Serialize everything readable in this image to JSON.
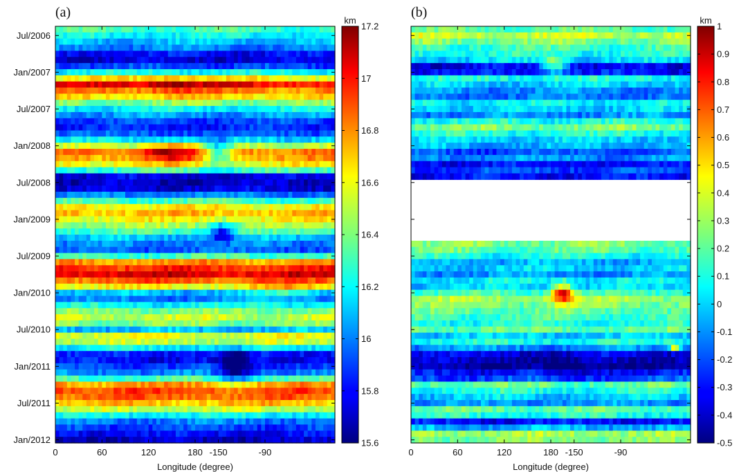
{
  "chart_data": [
    {
      "panel_label": "(a)",
      "type": "heatmap",
      "xlabel": "Longitude (degree)",
      "x_tick_labels": [
        "0",
        "60",
        "120",
        "180",
        "-150",
        "-90"
      ],
      "x_ticks_deg": [
        0,
        60,
        120,
        180,
        210,
        270
      ],
      "x_range_deg": [
        0,
        360
      ],
      "y_tick_labels": [
        "Jul/2006",
        "Jan/2007",
        "Jul/2007",
        "Jan/2008",
        "Jul/2008",
        "Jan/2009",
        "Jul/2009",
        "Jan/2010",
        "Jul/2010",
        "Jan/2011",
        "Jul/2011",
        "Jan/2012"
      ],
      "y_range": [
        "Jun/2006",
        "Jan/2012"
      ],
      "colorbar": {
        "unit": "km",
        "min": 15.6,
        "max": 17.2,
        "tick_labels": [
          "15.6",
          "15.8",
          "16",
          "16.2",
          "16.4",
          "16.6",
          "16.8",
          "17",
          "17.2"
        ],
        "tick_values": [
          15.6,
          15.8,
          16.0,
          16.2,
          16.4,
          16.6,
          16.8,
          17.0,
          17.2
        ]
      },
      "colormap": "jet",
      "grid": false,
      "rows_latest_first": false,
      "monthly_mean_km": [
        16.3,
        16.2,
        16.1,
        16.0,
        15.8,
        15.75,
        15.9,
        16.2,
        16.6,
        17.0,
        16.8,
        16.65,
        16.4,
        16.2,
        16.05,
        15.9,
        15.85,
        15.95,
        16.15,
        16.5,
        16.8,
        16.75,
        16.6,
        16.3,
        15.75,
        15.7,
        15.75,
        16.0,
        16.3,
        16.6,
        16.7,
        16.6,
        16.45,
        16.3,
        16.1,
        16.0,
        15.95,
        16.3,
        16.75,
        16.95,
        17.05,
        16.85,
        16.6,
        16.1,
        16.0,
        16.2,
        16.4,
        16.5,
        16.4,
        16.1,
        16.55,
        16.5,
        16.2,
        15.85,
        15.8,
        15.9,
        16.0,
        16.3,
        16.75,
        16.9,
        16.85,
        16.7,
        16.5,
        16.2,
        16.0,
        15.9,
        15.8,
        15.7
      ],
      "features": [
        {
          "center_lon_deg": 145,
          "month_index": 20,
          "delta_km": 0.35,
          "lon_width_deg": 35,
          "month_width": 1.6
        },
        {
          "center_lon_deg": 210,
          "month_index": 20,
          "delta_km": -0.55,
          "lon_width_deg": 18,
          "month_width": 2.0
        },
        {
          "center_lon_deg": 215,
          "month_index": 33,
          "delta_km": -0.45,
          "lon_width_deg": 15,
          "month_width": 1.6
        },
        {
          "center_lon_deg": 150,
          "month_index": 9,
          "delta_km": 0.2,
          "lon_width_deg": 40,
          "month_width": 1.5
        },
        {
          "center_lon_deg": 230,
          "month_index": 55,
          "delta_km": -0.45,
          "lon_width_deg": 20,
          "month_width": 3.0
        },
        {
          "center_lon_deg": 300,
          "month_index": 43,
          "delta_km": 0.2,
          "lon_width_deg": 40,
          "month_width": 1.5
        }
      ]
    },
    {
      "panel_label": "(b)",
      "type": "heatmap",
      "xlabel": "Longitude (degree)",
      "x_tick_labels": [
        "0",
        "60",
        "120",
        "180",
        "-150",
        "-90"
      ],
      "x_ticks_deg": [
        0,
        60,
        120,
        180,
        210,
        270
      ],
      "x_range_deg": [
        0,
        360
      ],
      "y_range": [
        "Jun/2006",
        "Jan/2012"
      ],
      "colorbar": {
        "unit": "km",
        "min": -0.5,
        "max": 1,
        "tick_labels": [
          "-0.5",
          "-0.4",
          "-0.3",
          "-0.2",
          "-0.1",
          "0",
          "0.1",
          "0.2",
          "0.3",
          "0.4",
          "0.5",
          "0.6",
          "0.7",
          "0.8",
          "0.9",
          "1"
        ],
        "tick_values": [
          -0.5,
          -0.4,
          -0.3,
          -0.2,
          -0.1,
          0.0,
          0.1,
          0.2,
          0.3,
          0.4,
          0.5,
          0.6,
          0.7,
          0.8,
          0.9,
          1.0
        ]
      },
      "colormap": "jet",
      "grid": false,
      "missing_months": [
        "Jul/2008",
        "Aug/2008",
        "Sep/2008",
        "Oct/2008",
        "Nov/2008",
        "Dec/2008",
        "Jan/2009",
        "Feb/2009",
        "Mar/2009",
        "Apr/2009"
      ],
      "monthly_mean_km": [
        0.2,
        0.35,
        0.25,
        0.15,
        0.1,
        0.0,
        -0.35,
        -0.3,
        0.1,
        0.0,
        -0.1,
        -0.15,
        0.05,
        0.0,
        -0.1,
        0.1,
        0.25,
        0.1,
        0.0,
        -0.05,
        -0.2,
        -0.1,
        -0.3,
        -0.2,
        -0.3,
        null,
        null,
        null,
        null,
        null,
        null,
        null,
        null,
        null,
        null,
        0.25,
        0.2,
        0.1,
        -0.05,
        0.0,
        -0.1,
        0.05,
        0.0,
        0.15,
        0.3,
        0.25,
        0.2,
        0.15,
        0.1,
        0.2,
        0.0,
        0.1,
        -0.1,
        -0.35,
        -0.4,
        -0.45,
        -0.3,
        -0.2,
        0.2,
        0.1,
        0.0,
        -0.1,
        0.2,
        0.1,
        -0.3,
        -0.05,
        0.3,
        0.25
      ],
      "features": [
        {
          "center_lon_deg": 195,
          "month_index": 43,
          "delta_km": 0.75,
          "lon_width_deg": 14,
          "month_width": 1.5
        },
        {
          "center_lon_deg": 185,
          "month_index": 6,
          "delta_km": 0.55,
          "lon_width_deg": 20,
          "month_width": 1.2
        },
        {
          "center_lon_deg": 200,
          "month_index": 55,
          "delta_km": -0.2,
          "lon_width_deg": 25,
          "month_width": 2.0
        },
        {
          "center_lon_deg": 340,
          "month_index": 52,
          "delta_km": 0.6,
          "lon_width_deg": 6,
          "month_width": 0.6
        }
      ]
    }
  ]
}
